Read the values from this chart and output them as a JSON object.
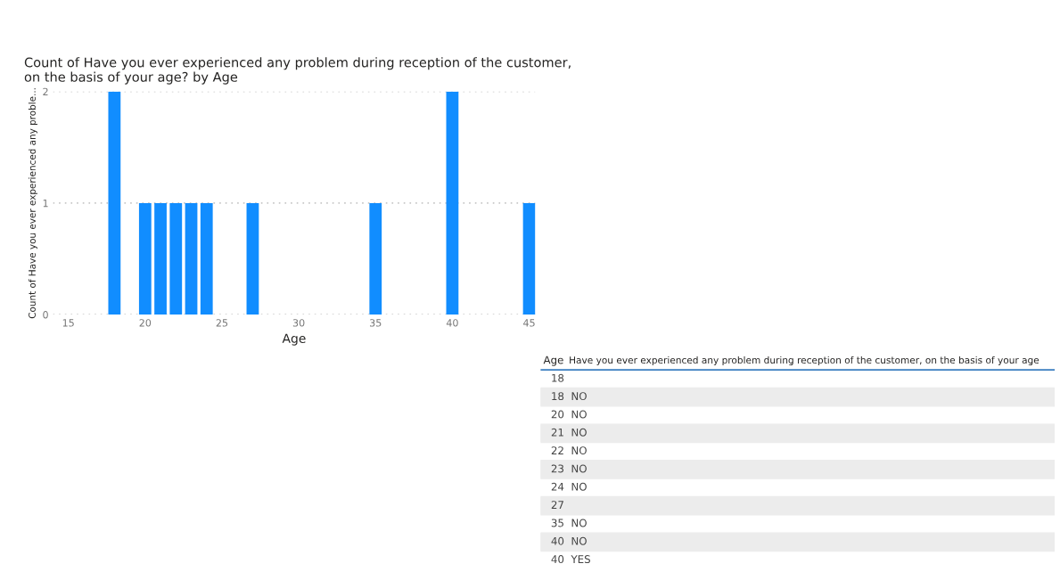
{
  "chart_data": [
    {
      "type": "bar",
      "title": "Count of Have you ever experienced any problem during reception of the customer,\non the basis of your age? by Age",
      "xlabel": "Age",
      "ylabel": "Count of Have you ever experienced any proble...",
      "x": [
        18,
        20,
        21,
        22,
        23,
        24,
        27,
        35,
        40,
        45
      ],
      "series": [
        {
          "color": "#118dff",
          "values": [
            2,
            1,
            1,
            1,
            1,
            1,
            1,
            1,
            2,
            1
          ]
        }
      ],
      "xlim": [
        14,
        45.4
      ],
      "xticks": [
        15,
        20,
        25,
        30,
        35,
        40,
        45
      ],
      "ylim": [
        0,
        2
      ],
      "yticks": [
        0,
        1,
        2
      ],
      "grid": "y",
      "legend": false
    },
    {
      "type": "other",
      "categories": [
        "Age",
        "Have you ever experienced any problem during reception of the customer, on the basis of your age"
      ],
      "annotations": [
        "18",
        "18  NO",
        "20  NO",
        "21  NO",
        "22  NO",
        "23  NO",
        "24  NO",
        "27",
        "35  NO",
        "40  NO",
        "40  YES"
      ]
    }
  ]
}
